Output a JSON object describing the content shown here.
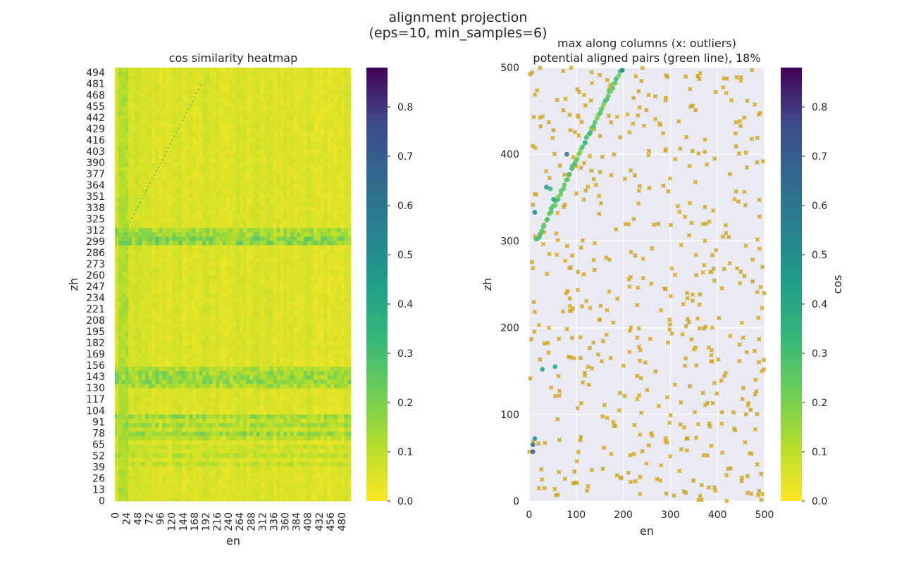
{
  "figure": {
    "suptitle_line1": "alignment projection",
    "suptitle_line2": "(eps=10, min_samples=6)"
  },
  "chart_data": [
    {
      "type": "heatmap",
      "title": "cos similarity heatmap",
      "xlabel": "en",
      "ylabel": "zh",
      "x_ticks": [
        "0",
        "24",
        "48",
        "72",
        "96",
        "120",
        "144",
        "168",
        "192",
        "216",
        "240",
        "264",
        "288",
        "312",
        "336",
        "360",
        "384",
        "408",
        "432",
        "456",
        "480"
      ],
      "y_ticks": [
        "0",
        "13",
        "26",
        "39",
        "52",
        "65",
        "78",
        "91",
        "104",
        "117",
        "130",
        "143",
        "156",
        "169",
        "182",
        "195",
        "208",
        "221",
        "234",
        "247",
        "260",
        "273",
        "286",
        "299",
        "312",
        "325",
        "338",
        "351",
        "364",
        "377",
        "390",
        "403",
        "416",
        "429",
        "442",
        "455",
        "468",
        "481",
        "494"
      ],
      "n_rows": 500,
      "n_cols": 500,
      "colormap": "viridis_r",
      "colorbar": {
        "ticks": [
          "0.0",
          "0.1",
          "0.2",
          "0.3",
          "0.4",
          "0.5",
          "0.6",
          "0.7",
          "0.8"
        ],
        "vmin": 0.0,
        "vmax": 0.88
      },
      "background_value": 0.03,
      "bands": [
        {
          "zh_range": [
            297,
            316
          ],
          "value": 0.13
        },
        {
          "zh_range": [
            130,
            156
          ],
          "value": 0.12
        },
        {
          "zh_range": [
            72,
            100
          ],
          "value": 0.1
        },
        {
          "zh_range": [
            40,
            65
          ],
          "value": 0.06
        }
      ],
      "col_bands": [
        {
          "en_range": [
            4,
            26
          ],
          "value": 0.11
        },
        {
          "en_range": [
            44,
            50
          ],
          "value": 0.07
        }
      ],
      "diagonal": {
        "from": [
          10,
          300
        ],
        "to": [
          180,
          480
        ],
        "value": 0.3
      }
    },
    {
      "type": "scatter",
      "title_line1": "max along columns (x: outliers)",
      "title_line2": "potential aligned pairs (green line), 18%",
      "xlabel": "en",
      "ylabel": "zh",
      "xlim": [
        0,
        500
      ],
      "ylim": [
        0,
        500
      ],
      "x_ticks": [
        "0",
        "100",
        "200",
        "300",
        "400",
        "500"
      ],
      "y_ticks": [
        "0",
        "100",
        "200",
        "300",
        "400",
        "500"
      ],
      "grid": true,
      "colormap": "viridis_r",
      "colorbar": {
        "label": "cos",
        "ticks": [
          "0.0",
          "0.1",
          "0.2",
          "0.3",
          "0.4",
          "0.5",
          "0.6",
          "0.7",
          "0.8"
        ],
        "vmin": 0.0,
        "vmax": 0.88
      },
      "aligned_line": {
        "x_from": 15,
        "x_to": 195,
        "y_from": 300,
        "y_to": 497,
        "cos": 0.22
      },
      "extra_points": [
        {
          "x": 8,
          "y": 57,
          "cos": 0.62
        },
        {
          "x": 8,
          "y": 65,
          "cos": 0.55
        },
        {
          "x": 12,
          "y": 72,
          "cos": 0.45
        },
        {
          "x": 80,
          "y": 400,
          "cos": 0.55
        },
        {
          "x": 37,
          "y": 362,
          "cos": 0.45
        },
        {
          "x": 12,
          "y": 333,
          "cos": 0.48
        },
        {
          "x": 28,
          "y": 152,
          "cos": 0.38
        },
        {
          "x": 55,
          "y": 155,
          "cos": 0.35
        },
        {
          "x": 45,
          "y": 360,
          "cos": 0.3
        },
        {
          "x": 52,
          "y": 348,
          "cos": 0.35
        },
        {
          "x": 130,
          "y": 425,
          "cos": 0.3
        },
        {
          "x": 198,
          "y": 497,
          "cos": 0.45
        }
      ],
      "outliers": {
        "count": 520,
        "x_range": [
          0,
          500
        ],
        "y_range": [
          0,
          500
        ],
        "cos_range": [
          0.05,
          0.15
        ]
      }
    }
  ],
  "colors": {
    "axes_bg": "#eaeaf2",
    "grid": "#ffffff",
    "outlier_orange": "#e08a1a",
    "outlier_grey": "#7a8d6e"
  }
}
